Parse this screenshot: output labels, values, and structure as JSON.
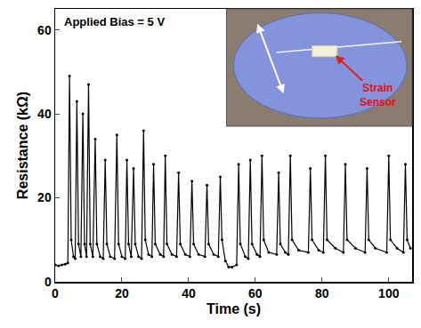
{
  "chart_data": {
    "type": "line",
    "x_label": "Time (s)",
    "y_label": "Resistance (kΩ)",
    "annotations": [
      "Applied Bias = 5 V",
      "Strain Sensor"
    ],
    "color": "#000000",
    "marker": "dot",
    "grid": false,
    "xlim": [
      0,
      107
    ],
    "ylim": [
      0,
      65
    ],
    "xticks": [
      0,
      20,
      40,
      60,
      80,
      100
    ],
    "yticks": [
      0,
      20,
      40,
      60
    ],
    "x": [
      0,
      1,
      2,
      3,
      3.8,
      4.3,
      4.8,
      5.5,
      6,
      6.5,
      7,
      7.7,
      8.3,
      8.8,
      9.4,
      10,
      10.5,
      11.3,
      12,
      12.5,
      13.5,
      14.4,
      15,
      15.5,
      16.5,
      17.8,
      18.5,
      19,
      20,
      21,
      21.5,
      22,
      22.8,
      23.5,
      24,
      25,
      25.9,
      26.5,
      27,
      28,
      29,
      29.5,
      30,
      31.5,
      32.5,
      33,
      33.5,
      35,
      36.4,
      37,
      37.5,
      39,
      40.4,
      41,
      41.5,
      43,
      44.9,
      45.5,
      46,
      47.5,
      48.9,
      49.5,
      50,
      51,
      52,
      53,
      54.4,
      55,
      55.5,
      57,
      57.9,
      58.5,
      59,
      60.5,
      61.4,
      62,
      62.5,
      64,
      66.4,
      67,
      67.5,
      69,
      69.9,
      70.5,
      71,
      73,
      75.9,
      76.5,
      77,
      79,
      80.4,
      81,
      81.5,
      84,
      86.4,
      87,
      87.5,
      90,
      92.9,
      93.5,
      94,
      96,
      99.4,
      100,
      100.5,
      102.5,
      104.4,
      105,
      105.5,
      106.5
    ],
    "values": [
      4,
      3.8,
      4,
      4.2,
      4.5,
      49,
      10,
      6,
      5.5,
      43,
      9,
      6,
      40,
      9,
      6,
      47,
      9,
      6,
      34,
      9,
      6,
      5.5,
      29,
      9,
      6,
      5.5,
      35,
      9,
      6,
      5.5,
      29,
      9,
      6,
      27,
      9,
      6,
      5.5,
      36,
      10,
      6.5,
      6,
      28,
      9,
      6.5,
      6,
      30,
      9,
      6.5,
      6,
      26,
      9,
      6.5,
      6,
      24,
      9,
      6.5,
      6,
      23,
      9,
      6.5,
      6,
      25,
      10,
      5,
      3.5,
      3.5,
      4,
      28,
      9,
      6,
      5.5,
      29,
      9,
      6.5,
      6,
      30,
      10,
      7,
      6.5,
      26,
      9,
      7,
      6.5,
      30,
      10,
      7.5,
      7,
      27,
      10,
      7.5,
      7,
      30,
      10,
      8,
      7,
      28,
      10,
      8,
      7,
      27,
      10,
      8,
      7,
      30,
      10,
      8,
      7,
      28,
      10,
      8
    ]
  }
}
